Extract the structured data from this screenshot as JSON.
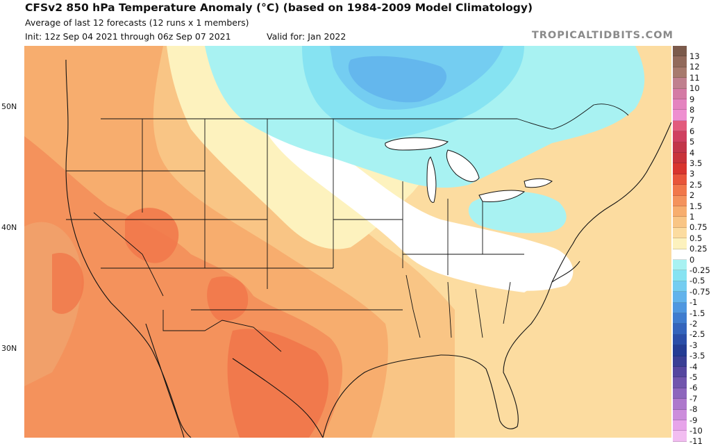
{
  "header": {
    "title": "CFSv2 850 hPa Temperature Anomaly (°C) (based on 1984-2009 Model Climatology)",
    "subtitle": "Average of last 12 forecasts (12 runs x 1 members)",
    "init": "Init: 12z Sep 04 2021 through 06z Sep 07 2021",
    "valid": "Valid for: Jan 2022",
    "brand": "TROPICALTIDBITS.COM"
  },
  "map": {
    "latitude_labels": [
      "50N",
      "40N",
      "30N"
    ]
  },
  "legend": {
    "levels": [
      {
        "label": "13",
        "color": "#7b5a4b"
      },
      {
        "label": "12",
        "color": "#926a5b"
      },
      {
        "label": "11",
        "color": "#a77a6d"
      },
      {
        "label": "10",
        "color": "#c0808e"
      },
      {
        "label": "9",
        "color": "#d47aa4"
      },
      {
        "label": "8",
        "color": "#e483bf"
      },
      {
        "label": "7",
        "color": "#ee8fd0"
      },
      {
        "label": "6",
        "color": "#e25a7c"
      },
      {
        "label": "5",
        "color": "#cf3f5f"
      },
      {
        "label": "4",
        "color": "#c23549"
      },
      {
        "label": "3.5",
        "color": "#c8333a"
      },
      {
        "label": "3",
        "color": "#d8352e"
      },
      {
        "label": "2.5",
        "color": "#e8553a"
      },
      {
        "label": "2",
        "color": "#f1774a"
      },
      {
        "label": "1.5",
        "color": "#f4925c"
      },
      {
        "label": "1",
        "color": "#f7ad6e"
      },
      {
        "label": "0.75",
        "color": "#f9c585"
      },
      {
        "label": "0.5",
        "color": "#fcdca0"
      },
      {
        "label": "0.25",
        "color": "#fdf2be"
      },
      {
        "label": "0",
        "color": "#ffffff"
      },
      {
        "label": "-0.25",
        "color": "#a8f2f2"
      },
      {
        "label": "-0.5",
        "color": "#86e3f2"
      },
      {
        "label": "-0.75",
        "color": "#74cdf1"
      },
      {
        "label": "-1",
        "color": "#62b3ec"
      },
      {
        "label": "-1.5",
        "color": "#4f97e0"
      },
      {
        "label": "-2",
        "color": "#3f7ccf"
      },
      {
        "label": "-2.5",
        "color": "#3464bc"
      },
      {
        "label": "-3",
        "color": "#2b4ea8"
      },
      {
        "label": "-3.5",
        "color": "#253d94"
      },
      {
        "label": "-4",
        "color": "#3a3f95"
      },
      {
        "label": "-5",
        "color": "#55469f"
      },
      {
        "label": "-6",
        "color": "#7155ad"
      },
      {
        "label": "-7",
        "color": "#8d66bd"
      },
      {
        "label": "-8",
        "color": "#ad78cc"
      },
      {
        "label": "-9",
        "color": "#cc8ddc"
      },
      {
        "label": "-10",
        "color": "#e7a4ea"
      },
      {
        "label": "-11",
        "color": "#f2bdf1"
      }
    ]
  }
}
